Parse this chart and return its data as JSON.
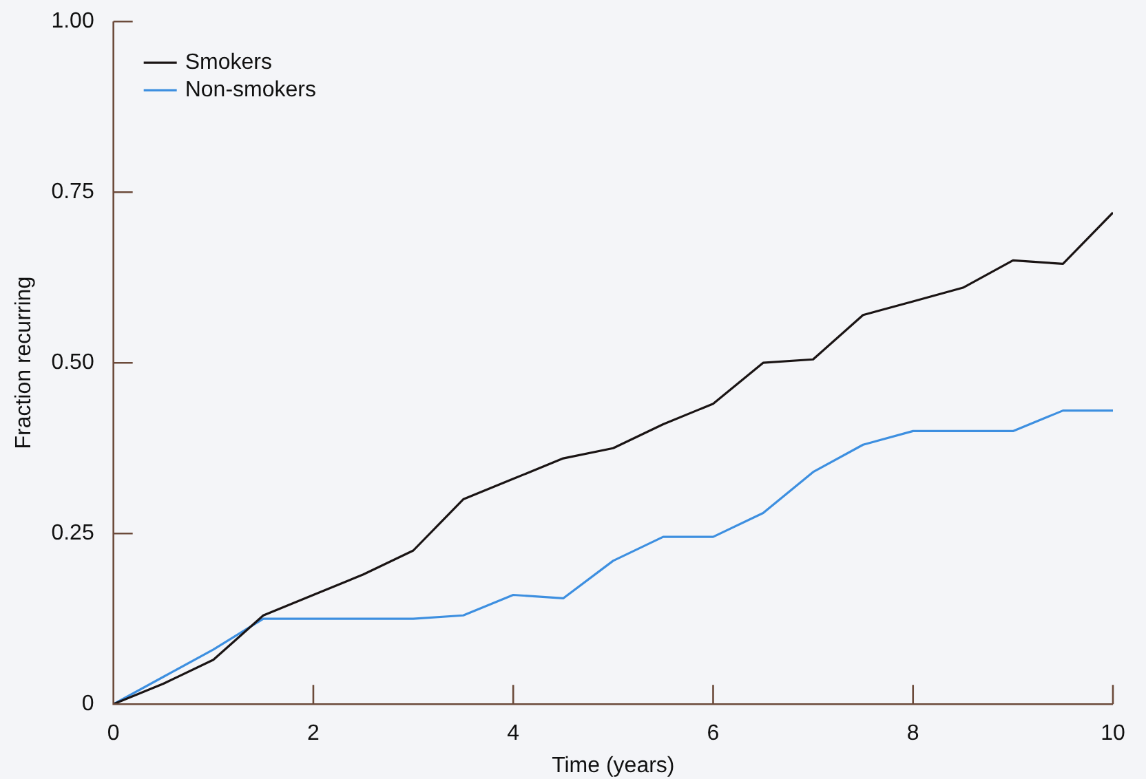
{
  "chart_data": {
    "type": "line",
    "xlabel": "Time (years)",
    "ylabel": "Fraction recurring",
    "x": [
      0,
      0.5,
      1,
      1.5,
      2,
      2.5,
      3,
      3.5,
      4,
      4.5,
      5,
      5.5,
      6,
      6.5,
      7,
      7.5,
      8,
      8.5,
      9,
      9.5,
      10
    ],
    "series": [
      {
        "name": "Smokers",
        "color": "#1a1414",
        "values": [
          0,
          0.03,
          0.065,
          0.13,
          0.16,
          0.19,
          0.225,
          0.3,
          0.33,
          0.36,
          0.375,
          0.41,
          0.44,
          0.5,
          0.505,
          0.57,
          0.59,
          0.61,
          0.65,
          0.645,
          0.72
        ]
      },
      {
        "name": "Non-smokers",
        "color": "#3d8fe0",
        "values": [
          0,
          0.04,
          0.08,
          0.125,
          0.125,
          0.125,
          0.125,
          0.13,
          0.16,
          0.155,
          0.21,
          0.245,
          0.245,
          0.28,
          0.34,
          0.38,
          0.4,
          0.4,
          0.4,
          0.43,
          0.43
        ]
      }
    ],
    "xlim": [
      0,
      10
    ],
    "xticks": [
      0,
      2,
      4,
      6,
      8,
      10
    ],
    "ylim": [
      0,
      1
    ],
    "yticks": [
      0,
      0.25,
      {
        "value": 0.5,
        "label": "0.50"
      },
      0.75,
      {
        "value": 1,
        "label": "1.00"
      }
    ],
    "grid": false,
    "legend": "top left",
    "marker": "none",
    "line_style": "solid"
  }
}
